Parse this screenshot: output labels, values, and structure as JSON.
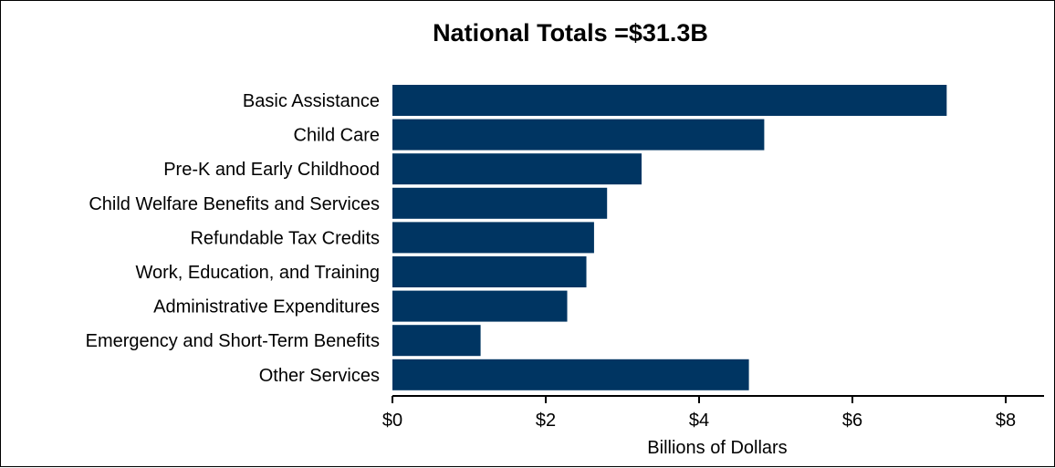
{
  "chart_data": {
    "type": "bar",
    "orientation": "horizontal",
    "title": "National Totals =$31.3B",
    "xlabel": "Billions of Dollars",
    "ylabel": "",
    "categories": [
      "Basic Assistance",
      "Child Care",
      "Pre-K and Early Childhood",
      "Child Welfare Benefits and Services",
      "Refundable Tax Credits",
      "Work, Education, and Training",
      "Administrative Expenditures",
      "Emergency and Short-Term Benefits",
      "Other Services"
    ],
    "values": [
      7.23,
      4.85,
      3.25,
      2.8,
      2.63,
      2.53,
      2.28,
      1.15,
      4.65
    ],
    "xlim": [
      0,
      8.5
    ],
    "xticks": [
      0,
      2,
      4,
      6,
      8
    ],
    "xtick_labels": [
      "$0",
      "$2",
      "$4",
      "$6",
      "$8"
    ],
    "bar_color": "#003562",
    "grid": false,
    "legend": "none"
  }
}
